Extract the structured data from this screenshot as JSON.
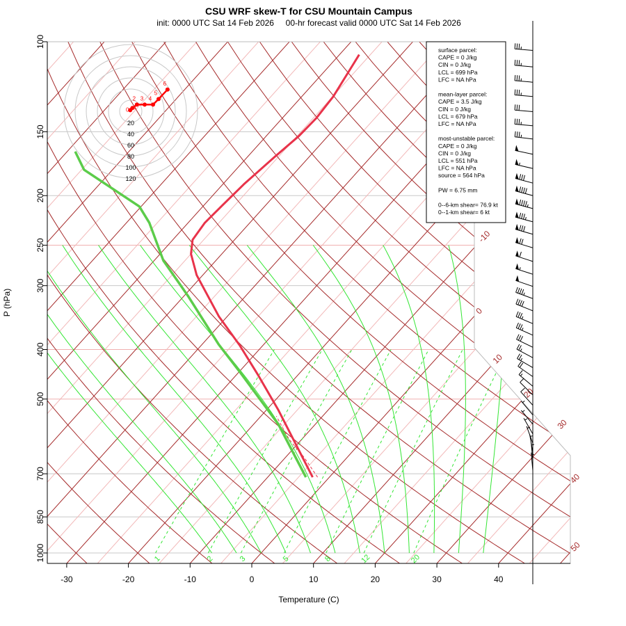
{
  "chart_data": {
    "type": "line",
    "title": "CSU WRF skew-T for CSU Mountain Campus",
    "subtitle": "init: 0000 UTC Sat 14 Feb 2026     00-hr forecast valid 0000 UTC Sat 14 Feb 2026",
    "xlabel": "Temperature (C)",
    "ylabel": "P (hPa)",
    "x_ticks": [
      -30,
      -20,
      -10,
      0,
      10,
      20,
      30,
      40
    ],
    "p_ticks": [
      100,
      150,
      200,
      250,
      300,
      400,
      500,
      700,
      850,
      1000
    ],
    "isotherm_labels": [
      -10,
      0,
      10,
      20,
      30,
      40,
      50
    ],
    "mixing_ratio_labels": [
      1,
      2,
      3,
      5,
      8,
      12,
      20
    ],
    "colors": {
      "temperature": "#e8334a",
      "dewpoint": "#5ccc4a",
      "isotherm": "#a52a2a",
      "moist": "#33e633",
      "hodo": "#ff0000"
    },
    "series": [
      {
        "name": "temperature",
        "points": [
          [
            711,
            -2.7
          ],
          [
            526,
            -18.0
          ],
          [
            450,
            -26.3
          ],
          [
            393,
            -33.7
          ],
          [
            345,
            -41.3
          ],
          [
            286,
            -51.0
          ],
          [
            260,
            -55.0
          ],
          [
            244,
            -56.8
          ],
          [
            226,
            -57.3
          ],
          [
            209,
            -57.0
          ],
          [
            190,
            -56.6
          ],
          [
            168,
            -55.6
          ],
          [
            153,
            -54.7
          ],
          [
            141,
            -54.5
          ],
          [
            128,
            -54.9
          ],
          [
            106,
            -56.8
          ]
        ]
      },
      {
        "name": "dewpoint",
        "points": [
          [
            711,
            -3.8
          ],
          [
            560,
            -16.0
          ],
          [
            443,
            -29.8
          ],
          [
            391,
            -37.3
          ],
          [
            314,
            -49.4
          ],
          [
            268,
            -58.5
          ],
          [
            226,
            -66.3
          ],
          [
            210,
            -70.3
          ],
          [
            178,
            -84.6
          ],
          [
            164,
            -88.7
          ]
        ]
      },
      {
        "name": "parcel",
        "points": [
          [
            711,
            -1.9
          ],
          [
            650,
            -7.0
          ],
          [
            600,
            -12.0
          ],
          [
            540,
            -17.5
          ]
        ]
      }
    ],
    "winds": [
      [
        104,
        35,
        275
      ],
      [
        112,
        35,
        275
      ],
      [
        120,
        35,
        275
      ],
      [
        128,
        35,
        275
      ],
      [
        137,
        30,
        275
      ],
      [
        146,
        35,
        275
      ],
      [
        155,
        35,
        277
      ],
      [
        166,
        50,
        282
      ],
      [
        177,
        55,
        283
      ],
      [
        189,
        80,
        285
      ],
      [
        200,
        90,
        285
      ],
      [
        212,
        95,
        285
      ],
      [
        225,
        85,
        285
      ],
      [
        238,
        80,
        286
      ],
      [
        253,
        70,
        287
      ],
      [
        269,
        60,
        288
      ],
      [
        285,
        55,
        288
      ],
      [
        301,
        50,
        289
      ],
      [
        318,
        45,
        290
      ],
      [
        336,
        40,
        292
      ],
      [
        356,
        35,
        293
      ],
      [
        375,
        35,
        294
      ],
      [
        396,
        30,
        296
      ],
      [
        415,
        25,
        298
      ],
      [
        434,
        25,
        300
      ],
      [
        452,
        20,
        305
      ],
      [
        472,
        15,
        310
      ],
      [
        491,
        10,
        315
      ],
      [
        514,
        10,
        318
      ],
      [
        537,
        5,
        320
      ],
      [
        560,
        5,
        320
      ],
      [
        585,
        5,
        330
      ],
      [
        610,
        5,
        340
      ],
      [
        635,
        5,
        350
      ],
      [
        660,
        5,
        355
      ],
      [
        690,
        3,
        355
      ]
    ],
    "hodograph": {
      "ring_labels": [
        20,
        40,
        60,
        80,
        100,
        120
      ],
      "points": [
        {
          "label": "0",
          "u": -1,
          "v": 2
        },
        {
          "label": "1",
          "u": 3,
          "v": 6
        },
        {
          "label": "2",
          "u": 11,
          "v": 12
        },
        {
          "label": "3",
          "u": 25,
          "v": 12
        },
        {
          "label": "4",
          "u": 40,
          "v": 12
        },
        {
          "label": "5",
          "u": 50,
          "v": 22
        },
        {
          "label": "6",
          "u": 66,
          "v": 39
        }
      ]
    },
    "info_box": [
      "surface parcel:",
      "CAPE = 0 J/kg",
      "CIN = 0 J/kg",
      "LCL = 699 hPa",
      "LFC = NA hPa",
      "",
      "mean-layer parcel:",
      "CAPE = 3.5 J/kg",
      "CIN = 0 J/kg",
      "LCL = 679 hPa",
      "LFC = NA hPa",
      "",
      "most-unstable parcel:",
      "CAPE = 0 J/kg",
      "CIN = 0 J/kg",
      "LCL = 551 hPa",
      "LFC = NA hPa",
      "source = 564 hPa",
      "",
      "PW =  6.75 mm",
      "",
      "0--6-km shear= 76.9 kt",
      "0--1-km shear= 6 kt"
    ]
  }
}
